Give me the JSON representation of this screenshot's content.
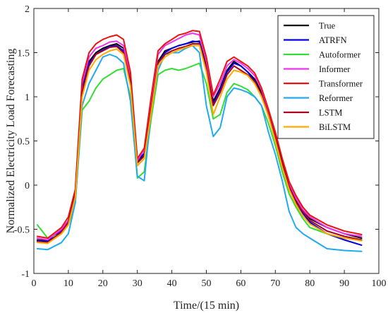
{
  "chart_data": {
    "type": "line",
    "xlabel": "Time/(15 min)",
    "ylabel": "Normalized Electricity Load Forecasting",
    "xlim": [
      0,
      100
    ],
    "ylim": [
      -1,
      2
    ],
    "xticks": [
      "0",
      "10",
      "20",
      "30",
      "40",
      "50",
      "60",
      "70",
      "80",
      "90",
      "100"
    ],
    "yticks": [
      "-1",
      "-0.5",
      "0",
      "0.5",
      "1",
      "1.5",
      "2"
    ],
    "legend_position": "top-right",
    "grid": false,
    "x": [
      1,
      4,
      8,
      10,
      12,
      14,
      16,
      18,
      20,
      22,
      24,
      26,
      28,
      30,
      32,
      34,
      36,
      38,
      40,
      42,
      44,
      46,
      48,
      50,
      52,
      54,
      56,
      58,
      60,
      62,
      64,
      66,
      68,
      70,
      72,
      74,
      76,
      78,
      80,
      85,
      90,
      95
    ],
    "series": [
      {
        "name": "True",
        "color": "#000000",
        "values": [
          -0.62,
          -0.63,
          -0.5,
          -0.4,
          -0.1,
          1.1,
          1.4,
          1.5,
          1.55,
          1.58,
          1.6,
          1.55,
          1.2,
          0.25,
          0.35,
          0.9,
          1.4,
          1.52,
          1.55,
          1.58,
          1.6,
          1.62,
          1.63,
          1.35,
          0.95,
          1.1,
          1.3,
          1.4,
          1.35,
          1.28,
          1.2,
          1.05,
          0.8,
          0.55,
          0.25,
          0.0,
          -0.18,
          -0.3,
          -0.38,
          -0.48,
          -0.55,
          -0.6
        ]
      },
      {
        "name": "ATRFN",
        "color": "#0000e6",
        "values": [
          -0.63,
          -0.64,
          -0.52,
          -0.42,
          -0.12,
          1.08,
          1.38,
          1.48,
          1.53,
          1.57,
          1.58,
          1.52,
          1.15,
          0.28,
          0.36,
          0.88,
          1.38,
          1.5,
          1.55,
          1.58,
          1.6,
          1.63,
          1.62,
          1.3,
          0.92,
          1.08,
          1.28,
          1.38,
          1.35,
          1.28,
          1.18,
          1.02,
          0.78,
          0.52,
          0.22,
          -0.02,
          -0.2,
          -0.32,
          -0.42,
          -0.55,
          -0.62,
          -0.68
        ]
      },
      {
        "name": "Autoformer",
        "color": "#33dd33",
        "values": [
          -0.45,
          -0.6,
          -0.55,
          -0.45,
          -0.2,
          0.85,
          0.95,
          1.1,
          1.2,
          1.25,
          1.3,
          1.32,
          1.0,
          0.08,
          0.15,
          0.75,
          1.25,
          1.3,
          1.32,
          1.3,
          1.32,
          1.35,
          1.38,
          1.15,
          0.75,
          0.8,
          1.05,
          1.15,
          1.12,
          1.08,
          1.0,
          0.9,
          0.7,
          0.45,
          0.15,
          -0.1,
          -0.25,
          -0.38,
          -0.48,
          -0.55,
          -0.6,
          -0.62
        ]
      },
      {
        "name": "Informer",
        "color": "#ee33ee",
        "values": [
          -0.6,
          -0.62,
          -0.5,
          -0.4,
          -0.08,
          1.15,
          1.45,
          1.55,
          1.58,
          1.62,
          1.63,
          1.58,
          1.22,
          0.28,
          0.4,
          0.95,
          1.48,
          1.58,
          1.62,
          1.66,
          1.7,
          1.72,
          1.7,
          1.4,
          1.0,
          1.15,
          1.35,
          1.42,
          1.38,
          1.32,
          1.24,
          1.08,
          0.84,
          0.58,
          0.28,
          0.02,
          -0.15,
          -0.28,
          -0.36,
          -0.48,
          -0.55,
          -0.58
        ]
      },
      {
        "name": "Transformer",
        "color": "#ee1111",
        "values": [
          -0.58,
          -0.6,
          -0.48,
          -0.36,
          -0.05,
          1.2,
          1.5,
          1.6,
          1.65,
          1.68,
          1.7,
          1.65,
          1.28,
          0.3,
          0.42,
          1.0,
          1.52,
          1.6,
          1.65,
          1.7,
          1.72,
          1.75,
          1.74,
          1.45,
          1.02,
          1.2,
          1.4,
          1.45,
          1.4,
          1.35,
          1.27,
          1.1,
          0.86,
          0.6,
          0.3,
          0.04,
          -0.12,
          -0.25,
          -0.34,
          -0.45,
          -0.52,
          -0.56
        ]
      },
      {
        "name": "Reformer",
        "color": "#22aaee",
        "values": [
          -0.72,
          -0.73,
          -0.65,
          -0.55,
          -0.2,
          0.9,
          1.15,
          1.3,
          1.45,
          1.48,
          1.45,
          1.38,
          0.95,
          0.1,
          0.05,
          0.85,
          1.3,
          1.48,
          1.5,
          1.5,
          1.55,
          1.58,
          1.5,
          0.9,
          0.55,
          0.65,
          1.0,
          1.1,
          1.08,
          1.05,
          1.0,
          0.9,
          0.6,
          0.35,
          0.05,
          -0.3,
          -0.48,
          -0.55,
          -0.6,
          -0.72,
          -0.74,
          -0.75
        ]
      },
      {
        "name": "LSTM",
        "color": "#aa0022",
        "values": [
          -0.64,
          -0.65,
          -0.53,
          -0.42,
          -0.1,
          1.05,
          1.35,
          1.48,
          1.52,
          1.56,
          1.57,
          1.5,
          1.18,
          0.25,
          0.33,
          0.86,
          1.38,
          1.48,
          1.52,
          1.55,
          1.57,
          1.6,
          1.6,
          1.32,
          0.9,
          1.05,
          1.25,
          1.35,
          1.3,
          1.25,
          1.17,
          1.02,
          0.8,
          0.54,
          0.25,
          -0.02,
          -0.2,
          -0.3,
          -0.4,
          -0.52,
          -0.58,
          -0.62
        ]
      },
      {
        "name": "BiLSTM",
        "color": "#ffaa00",
        "values": [
          -0.65,
          -0.66,
          -0.55,
          -0.45,
          -0.14,
          1.0,
          1.3,
          1.42,
          1.48,
          1.52,
          1.54,
          1.48,
          1.12,
          0.22,
          0.3,
          0.82,
          1.35,
          1.45,
          1.5,
          1.53,
          1.56,
          1.58,
          1.58,
          1.28,
          0.8,
          1.0,
          1.2,
          1.3,
          1.28,
          1.24,
          1.15,
          1.0,
          0.78,
          0.5,
          0.2,
          -0.05,
          -0.22,
          -0.35,
          -0.44,
          -0.55,
          -0.6,
          -0.63
        ]
      }
    ]
  }
}
